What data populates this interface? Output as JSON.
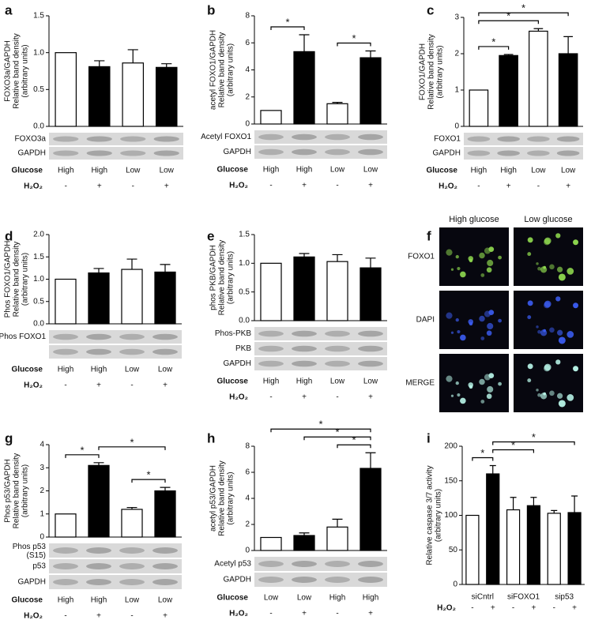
{
  "chart_data": [
    {
      "type": "bar",
      "panel": "a",
      "ylabel": [
        "FOXO3a/GAPDH",
        "Relative band density",
        "(arbitrary units)"
      ],
      "values": [
        1.0,
        0.81,
        0.86,
        0.8
      ],
      "errors": [
        null,
        0.08,
        0.18,
        0.05
      ],
      "bar_colors": [
        "#ffffff",
        "#000000",
        "#ffffff",
        "#000000"
      ],
      "ylim": [
        0,
        1.5
      ],
      "yticks": [
        {
          "value": 0,
          "label": "0.0"
        },
        0.5,
        {
          "value": 1,
          "label": "1.0"
        },
        1.5
      ],
      "significance": [],
      "blots": [
        "FOXO3a",
        "GAPDH"
      ],
      "conditions": [
        {
          "label": "Glucose",
          "values": [
            "High",
            "High",
            "Low",
            "Low"
          ]
        },
        {
          "label": "H₂O₂",
          "values": [
            "-",
            "+",
            "-",
            "+"
          ]
        }
      ]
    },
    {
      "type": "bar",
      "panel": "b",
      "ylabel": [
        "acetyl FOXO1/GAPDH",
        "Relative band density",
        "(arbitrary units)"
      ],
      "values": [
        1.0,
        5.35,
        1.5,
        4.9
      ],
      "errors": [
        null,
        1.25,
        0.1,
        0.5
      ],
      "bar_colors": [
        "#ffffff",
        "#000000",
        "#ffffff",
        "#000000"
      ],
      "ylim": [
        0,
        8
      ],
      "yticks": [
        0,
        2,
        4,
        6,
        8
      ],
      "significance": [
        {
          "from": 0,
          "to": 1,
          "label": "*"
        },
        {
          "from": 2,
          "to": 3,
          "label": "*"
        }
      ],
      "blots": [
        "Acetyl FOXO1",
        "GAPDH"
      ],
      "conditions": [
        {
          "label": "Glucose",
          "values": [
            "High",
            "High",
            "Low",
            "Low"
          ]
        },
        {
          "label": "H₂O₂",
          "values": [
            "-",
            "+",
            "-",
            "+"
          ]
        }
      ]
    },
    {
      "type": "bar",
      "panel": "c",
      "ylabel": [
        "FOXO1/GAPDH",
        "Relative band density",
        "(arbitrary units)"
      ],
      "values": [
        1.0,
        1.95,
        2.62,
        2.0
      ],
      "errors": [
        null,
        0.03,
        0.07,
        0.47
      ],
      "bar_colors": [
        "#ffffff",
        "#000000",
        "#ffffff",
        "#000000"
      ],
      "ylim": [
        0,
        3
      ],
      "yticks": [
        0,
        1,
        2,
        3
      ],
      "significance": [
        {
          "from": 0,
          "to": 1,
          "label": "*"
        },
        {
          "from": 0,
          "to": 2,
          "label": "*"
        },
        {
          "from": 0,
          "to": 3,
          "label": "*"
        }
      ],
      "blots": [
        "FOXO1",
        "GAPDH"
      ],
      "conditions": [
        {
          "label": "Glucose",
          "values": [
            "High",
            "High",
            "Low",
            "Low"
          ]
        },
        {
          "label": "H₂O₂",
          "values": [
            "-",
            "+",
            "-",
            "+"
          ]
        }
      ]
    },
    {
      "type": "bar",
      "panel": "d",
      "ylabel": [
        "Phos FOXO1/GAPDH",
        "Relative band density",
        "(arbitrary units)"
      ],
      "values": [
        1.0,
        1.14,
        1.22,
        1.16
      ],
      "errors": [
        null,
        0.1,
        0.23,
        0.17
      ],
      "bar_colors": [
        "#ffffff",
        "#000000",
        "#ffffff",
        "#000000"
      ],
      "ylim": [
        0,
        2
      ],
      "yticks": [
        {
          "value": 0,
          "label": "0.0"
        },
        0.5,
        {
          "value": 1,
          "label": "1.0"
        },
        1.5,
        {
          "value": 2,
          "label": "2.0"
        }
      ],
      "significance": [],
      "blots": [
        "Phos FOXO1",
        ""
      ],
      "conditions": [
        {
          "label": "Glucose",
          "values": [
            "High",
            "High",
            "Low",
            "Low"
          ]
        },
        {
          "label": "H₂O₂",
          "values": [
            "-",
            "+",
            "-",
            "+"
          ]
        }
      ]
    },
    {
      "type": "bar",
      "panel": "e",
      "ylabel": [
        "phos PKB/GAPDH",
        "Relative band density",
        "(arbitrary units)"
      ],
      "values": [
        1.0,
        1.11,
        1.03,
        0.92
      ],
      "errors": [
        null,
        0.06,
        0.12,
        0.17
      ],
      "bar_colors": [
        "#ffffff",
        "#000000",
        "#ffffff",
        "#000000"
      ],
      "ylim": [
        0,
        1.5
      ],
      "yticks": [
        {
          "value": 0,
          "label": "0.0"
        },
        0.5,
        {
          "value": 1,
          "label": "1.0"
        },
        1.5
      ],
      "significance": [],
      "blots": [
        "Phos-PKB",
        "PKB",
        "GAPDH"
      ],
      "conditions": [
        {
          "label": "Glucose",
          "values": [
            "High",
            "High",
            "Low",
            "Low"
          ]
        },
        {
          "label": "H₂O₂",
          "values": [
            "-",
            "+",
            "-",
            "+"
          ]
        }
      ]
    },
    {
      "type": "micrograph",
      "panel": "f",
      "columns": [
        "High glucose",
        "Low glucose"
      ],
      "rows": [
        "FOXO1",
        "DAPI",
        "MERGE"
      ]
    },
    {
      "type": "bar",
      "panel": "g",
      "ylabel": [
        "Phos p53/GAPDH",
        "Relative band density",
        "(arbitrary units)"
      ],
      "values": [
        1.0,
        3.1,
        1.2,
        2.0
      ],
      "errors": [
        null,
        0.12,
        0.08,
        0.15
      ],
      "bar_colors": [
        "#ffffff",
        "#000000",
        "#ffffff",
        "#000000"
      ],
      "ylim": [
        0,
        4
      ],
      "yticks": [
        0,
        1,
        2,
        3,
        4
      ],
      "significance": [
        {
          "from": 0,
          "to": 1,
          "label": "*"
        },
        {
          "from": 2,
          "to": 3,
          "label": "*"
        },
        {
          "from": 1,
          "to": 3,
          "label": "*"
        }
      ],
      "blots": [
        [
          "Phos p53",
          "(S15)"
        ],
        "p53",
        "GAPDH"
      ],
      "conditions": [
        {
          "label": "Glucose",
          "values": [
            "High",
            "High",
            "Low",
            "Low"
          ]
        },
        {
          "label": "H₂O₂",
          "values": [
            "-",
            "+",
            "-",
            "+"
          ]
        }
      ]
    },
    {
      "type": "bar",
      "panel": "h",
      "ylabel": [
        "acetyl p53/GAPDH",
        "Relative band density",
        "(arbitrary units)"
      ],
      "values": [
        1.0,
        1.15,
        1.8,
        6.3
      ],
      "errors": [
        null,
        0.2,
        0.6,
        1.2
      ],
      "bar_colors": [
        "#ffffff",
        "#000000",
        "#ffffff",
        "#000000"
      ],
      "ylim": [
        0,
        8
      ],
      "yticks": [
        0,
        2,
        4,
        6,
        8
      ],
      "significance": [
        {
          "from": 2,
          "to": 3,
          "label": "*"
        },
        {
          "from": 1,
          "to": 3,
          "label": "*"
        },
        {
          "from": 0,
          "to": 3,
          "label": "*"
        }
      ],
      "blots": [
        "Acetyl p53",
        "GAPDH"
      ],
      "conditions": [
        {
          "label": "Glucose",
          "values": [
            "Low",
            "Low",
            "High",
            "High"
          ]
        },
        {
          "label": "H₂O₂",
          "values": [
            "-",
            "+",
            "-",
            "+"
          ]
        }
      ]
    },
    {
      "type": "bar",
      "panel": "i",
      "ylabel": [
        "Relative caspase 3/7 activity",
        "(arbitrary units)"
      ],
      "values": [
        100,
        160,
        108,
        114,
        103,
        104
      ],
      "errors": [
        null,
        12,
        18,
        12,
        4,
        24
      ],
      "bar_colors": [
        "#ffffff",
        "#000000",
        "#ffffff",
        "#000000",
        "#ffffff",
        "#000000"
      ],
      "ylim": [
        0,
        200
      ],
      "yticks": [
        0,
        50,
        100,
        150,
        200
      ],
      "significance": [
        {
          "from": 0,
          "to": 1,
          "label": "*"
        },
        {
          "from": 1,
          "to": 3,
          "label": "*"
        },
        {
          "from": 1,
          "to": 5,
          "label": "*"
        }
      ],
      "blots": [],
      "groups": [
        "siCntrl",
        "siFOXO1",
        "sip53"
      ],
      "conditions": [
        {
          "label": "H₂O₂",
          "values": [
            "-",
            "+",
            "-",
            "+",
            "-",
            "+"
          ]
        }
      ]
    }
  ]
}
